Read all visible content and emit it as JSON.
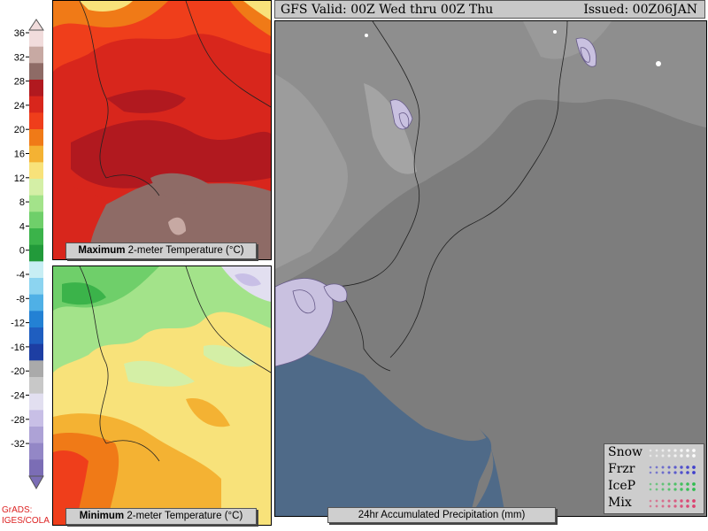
{
  "colorbar": {
    "ticks": [
      "36",
      "32",
      "28",
      "24",
      "20",
      "16",
      "12",
      "8",
      "4",
      "0",
      "-4",
      "-8",
      "-12",
      "-16",
      "-20",
      "-24",
      "-28",
      "-32"
    ],
    "colors": [
      "#f1dcdc",
      "#c7a9a3",
      "#8e6b66",
      "#b1191f",
      "#d8261c",
      "#ef3e1b",
      "#f07a17",
      "#f4b233",
      "#f8e27a",
      "#d4efa6",
      "#a3e38a",
      "#6fcf6a",
      "#3bb34a",
      "#229a3a",
      "#c8eef4",
      "#8cd4f0",
      "#4fb0e6",
      "#2381d4",
      "#1f5ec0",
      "#1d3ea3",
      "#aaaaaa",
      "#c8c8c8",
      "#e2dff0",
      "#c8bfe6",
      "#ada2d6",
      "#9387c6",
      "#7b6db5"
    ]
  },
  "panel_max": {
    "caption_bold": "Maximum",
    "caption_rest": " 2-meter Temperature (°C)"
  },
  "panel_min": {
    "caption_bold": "Minimum",
    "caption_rest": " 2-meter Temperature (°C)"
  },
  "precip": {
    "title_left": "GFS Valid: 00Z Wed thru 00Z Thu",
    "title_right": "Issued: 00Z06JAN",
    "caption": "24hr Accumulated Precipitation (mm)",
    "legend": [
      {
        "label": "Snow",
        "color": "#ffffff"
      },
      {
        "label": "Frzr",
        "color": "#3333cc"
      },
      {
        "label": "IceP",
        "color": "#22bb44"
      },
      {
        "label": "Mix",
        "color": "#dd3366"
      }
    ]
  },
  "credit": {
    "line1": "GrADS:",
    "line2": "IGES/COLA"
  }
}
